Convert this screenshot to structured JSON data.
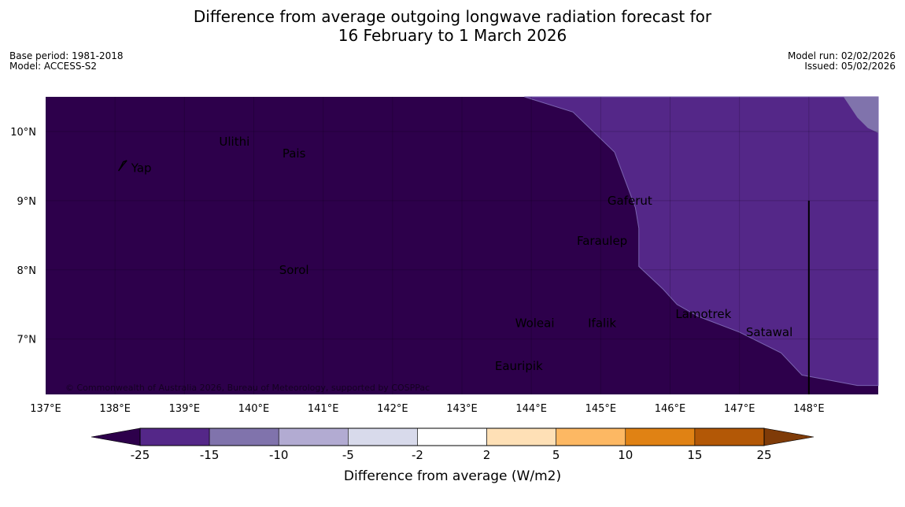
{
  "title": {
    "line1": "Difference from average outgoing longwave radiation forecast for",
    "line2": "16 February to 1 March 2026"
  },
  "meta_left": {
    "base_period": "Base period: 1981-2018",
    "model": "Model: ACCESS-S2"
  },
  "meta_right": {
    "model_run": "Model run: 02/02/2026",
    "issued": "Issued: 05/02/2026"
  },
  "map": {
    "lon_range": [
      137.0,
      149.0
    ],
    "lat_range": [
      6.2,
      10.5
    ],
    "lat_ticks": [
      {
        "value": 10,
        "label": "10°N"
      },
      {
        "value": 9,
        "label": "9°N"
      },
      {
        "value": 8,
        "label": "8°N"
      },
      {
        "value": 7,
        "label": "7°N"
      }
    ],
    "lon_ticks": [
      {
        "value": 137,
        "label": "137°E"
      },
      {
        "value": 138,
        "label": "138°E"
      },
      {
        "value": 139,
        "label": "139°E"
      },
      {
        "value": 140,
        "label": "140°E"
      },
      {
        "value": 141,
        "label": "141°E"
      },
      {
        "value": 142,
        "label": "142°E"
      },
      {
        "value": 143,
        "label": "143°E"
      },
      {
        "value": 144,
        "label": "144°E"
      },
      {
        "value": 145,
        "label": "145°E"
      },
      {
        "value": 146,
        "label": "146°E"
      },
      {
        "value": 147,
        "label": "147°E"
      },
      {
        "value": 148,
        "label": "148°E"
      }
    ],
    "places": [
      {
        "name": "Ulithi",
        "lon": 139.72,
        "lat": 9.85
      },
      {
        "name": "Pais",
        "lon": 140.58,
        "lat": 9.68
      },
      {
        "name": "Yap",
        "lon": 138.38,
        "lat": 9.47
      },
      {
        "name": "Gaferut",
        "lon": 145.42,
        "lat": 9.0
      },
      {
        "name": "Faraulep",
        "lon": 145.02,
        "lat": 8.42
      },
      {
        "name": "Sorol",
        "lon": 140.58,
        "lat": 8.0
      },
      {
        "name": "Lamotrek",
        "lon": 146.48,
        "lat": 7.36
      },
      {
        "name": "Woleai",
        "lon": 144.05,
        "lat": 7.23
      },
      {
        "name": "Ifalik",
        "lon": 145.02,
        "lat": 7.23
      },
      {
        "name": "Satawal",
        "lon": 147.43,
        "lat": 7.1
      },
      {
        "name": "Eauripik",
        "lon": 143.82,
        "lat": 6.61
      }
    ],
    "copyright": "© Commonwealth of Australia 2026, Bureau of Meteorology, supported by COSPPac",
    "regions": [
      {
        "name": "below -25",
        "color": "#2d004b"
      },
      {
        "name": "-25 to -15",
        "color": "#542788"
      },
      {
        "name": "-15 to -10",
        "color": "#8073ac"
      }
    ]
  },
  "colorbar": {
    "title": "Difference from average (W/m2)",
    "levels": [
      "-25",
      "-15",
      "-10",
      "-5",
      "-2",
      "2",
      "5",
      "10",
      "15",
      "25"
    ],
    "colors": [
      "#542788",
      "#8073ac",
      "#b2abd2",
      "#d8daeb",
      "#ffffff",
      "#fee0b6",
      "#fdb863",
      "#e08214",
      "#b35806"
    ],
    "under_color": "#2d004b",
    "over_color": "#7f3b08"
  }
}
